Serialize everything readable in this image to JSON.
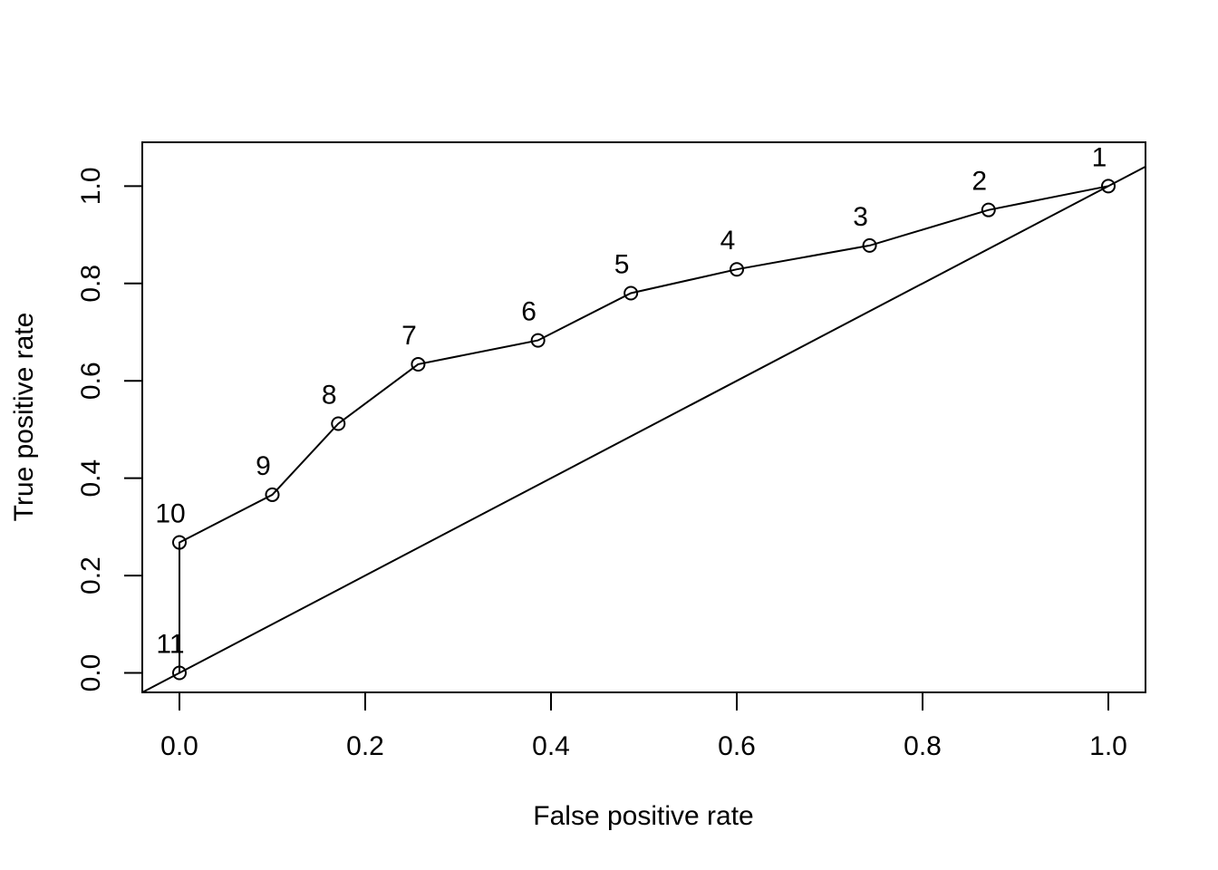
{
  "chart_data": {
    "type": "line",
    "title": "",
    "xlabel": "False positive rate",
    "ylabel": "True positive rate",
    "xlim": [
      -0.04,
      1.04
    ],
    "ylim": [
      -0.04,
      1.09
    ],
    "x_ticks": [
      0.0,
      0.2,
      0.4,
      0.6,
      0.8,
      1.0
    ],
    "x_tick_labels": [
      "0.0",
      "0.2",
      "0.4",
      "0.6",
      "0.8",
      "1.0"
    ],
    "y_ticks": [
      0.0,
      0.2,
      0.4,
      0.6,
      0.8,
      1.0
    ],
    "y_tick_labels": [
      "0.0",
      "0.2",
      "0.4",
      "0.6",
      "0.8",
      "1.0"
    ],
    "grid": false,
    "legend": "none",
    "series": [
      {
        "points": [
          {
            "label": "1",
            "x": 1.0,
            "y": 1.0
          },
          {
            "label": "2",
            "x": 0.871,
            "y": 0.951
          },
          {
            "label": "3",
            "x": 0.743,
            "y": 0.878
          },
          {
            "label": "4",
            "x": 0.6,
            "y": 0.829
          },
          {
            "label": "5",
            "x": 0.486,
            "y": 0.78
          },
          {
            "label": "6",
            "x": 0.386,
            "y": 0.683
          },
          {
            "label": "7",
            "x": 0.257,
            "y": 0.634
          },
          {
            "label": "8",
            "x": 0.171,
            "y": 0.512
          },
          {
            "label": "9",
            "x": 0.1,
            "y": 0.366
          },
          {
            "label": "10",
            "x": 0.0,
            "y": 0.268
          },
          {
            "label": "11",
            "x": 0.0,
            "y": 0.0
          }
        ]
      }
    ],
    "reference_line": {
      "intercept": 0.0,
      "slope": 1.0
    }
  }
}
